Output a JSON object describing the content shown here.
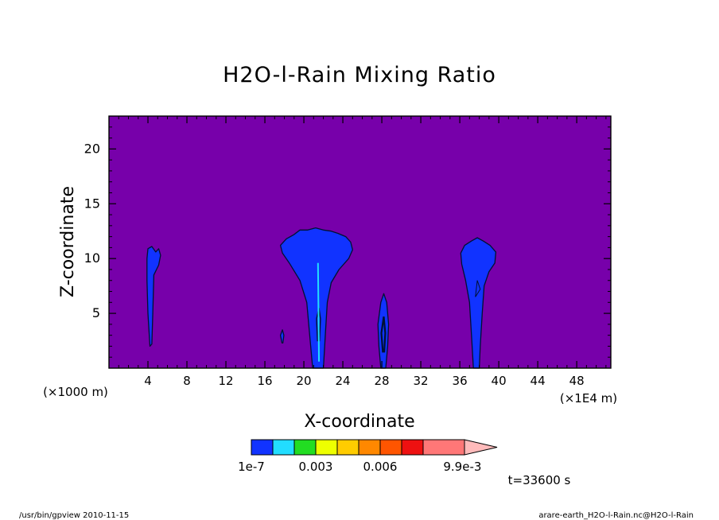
{
  "chart_data": {
    "type": "heatmap",
    "title": "H2O-l-Rain Mixing Ratio",
    "xlabel": "X-coordinate",
    "ylabel": "Z-coordinate",
    "x_unit_left": "(×1000 m)",
    "x_unit_right": "(×1E4 m)",
    "xlim": [
      0,
      51.5
    ],
    "ylim": [
      0,
      23
    ],
    "x_ticks": [
      4,
      8,
      12,
      16,
      20,
      24,
      28,
      32,
      36,
      40,
      44,
      48
    ],
    "y_ticks": [
      5,
      10,
      15,
      20
    ],
    "background_color": "#7700aa",
    "colorbar": {
      "colors": [
        "#1133ff",
        "#22ddff",
        "#22dd22",
        "#eeff00",
        "#ffcc00",
        "#ff8800",
        "#ff5500",
        "#ee1111",
        "#ff7777",
        "#ffbbbb"
      ],
      "labels": [
        {
          "text": "1e-7",
          "at": 0
        },
        {
          "text": "0.003",
          "at": 3
        },
        {
          "text": "0.006",
          "at": 6
        },
        {
          "text": "9.9e-3",
          "at": 9.9
        }
      ]
    },
    "features": [
      {
        "name": "rain-cell-x4",
        "x_center": 4.5,
        "z_bottom": 2.0,
        "z_top": 11.0
      },
      {
        "name": "rain-cell-x18",
        "x_center": 17.8,
        "z_bottom": 2.2,
        "z_top": 3.5
      },
      {
        "name": "rain-cell-x21",
        "x_center": 21.5,
        "z_bottom": 0.0,
        "z_top": 12.8
      },
      {
        "name": "rain-cell-x28",
        "x_center": 28.2,
        "z_bottom": 0.0,
        "z_top": 6.8
      },
      {
        "name": "rain-cell-x38",
        "x_center": 37.8,
        "z_bottom": 0.0,
        "z_top": 11.9
      }
    ]
  },
  "time_label": "t=33600 s",
  "footer_left": "/usr/bin/gpview   2010-11-15",
  "footer_right": "arare-earth_H2O-l-Rain.nc@H2O-l-Rain"
}
